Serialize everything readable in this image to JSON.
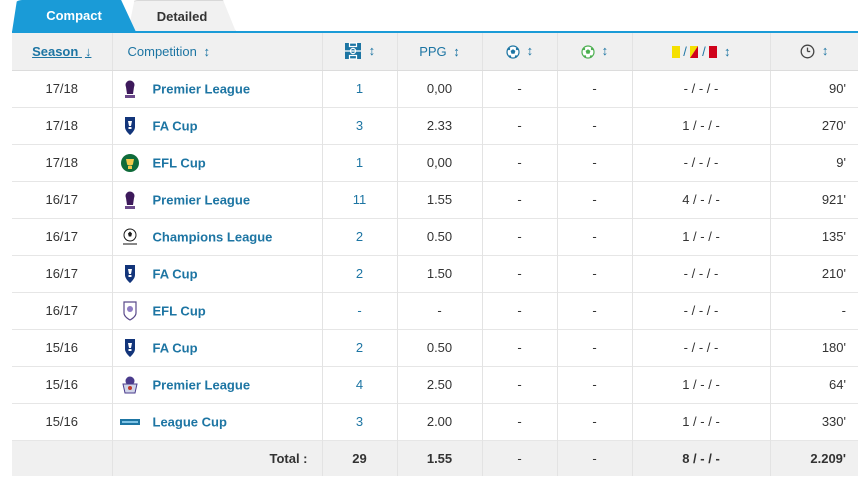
{
  "tabs": {
    "compact": "Compact",
    "detailed": "Detailed"
  },
  "headers": {
    "season": "Season",
    "season_arrow": "↓",
    "competition": "Competition",
    "competition_arrow": "↕",
    "apps_arrow": "↕",
    "ppg": "PPG",
    "ppg_arrow": "↕",
    "goals_arrow": "↕",
    "assists_arrow": "↕",
    "cards_sep1": "/",
    "cards_sep2": "/",
    "cards_arrow": "↕",
    "minutes_arrow": "↕"
  },
  "rows": [
    {
      "season": "17/18",
      "competition": "Premier League",
      "logo": "premier-league-logo",
      "apps": "1",
      "ppg": "0,00",
      "goals": "-",
      "assists": "-",
      "cards": "- / - / -",
      "minutes": "90'"
    },
    {
      "season": "17/18",
      "competition": "FA Cup",
      "logo": "fa-cup-logo",
      "apps": "3",
      "ppg": "2.33",
      "goals": "-",
      "assists": "-",
      "cards": "1 / - / -",
      "minutes": "270'"
    },
    {
      "season": "17/18",
      "competition": "EFL Cup",
      "logo": "efl-cup-logo",
      "apps": "1",
      "ppg": "0,00",
      "goals": "-",
      "assists": "-",
      "cards": "- / - / -",
      "minutes": "9'"
    },
    {
      "season": "16/17",
      "competition": "Premier League",
      "logo": "premier-league-logo",
      "apps": "11",
      "ppg": "1.55",
      "goals": "-",
      "assists": "-",
      "cards": "4 / - / -",
      "minutes": "921'"
    },
    {
      "season": "16/17",
      "competition": "Champions League",
      "logo": "champions-league-logo",
      "apps": "2",
      "ppg": "0.50",
      "goals": "-",
      "assists": "-",
      "cards": "1 / - / -",
      "minutes": "135'"
    },
    {
      "season": "16/17",
      "competition": "FA Cup",
      "logo": "fa-cup-logo",
      "apps": "2",
      "ppg": "1.50",
      "goals": "-",
      "assists": "-",
      "cards": "- / - / -",
      "minutes": "210'"
    },
    {
      "season": "16/17",
      "competition": "EFL Cup",
      "logo": "efl-cup-old-logo",
      "apps": "-",
      "ppg": "-",
      "goals": "-",
      "assists": "-",
      "cards": "- / - / -",
      "minutes": "-"
    },
    {
      "season": "15/16",
      "competition": "FA Cup",
      "logo": "fa-cup-logo",
      "apps": "2",
      "ppg": "0.50",
      "goals": "-",
      "assists": "-",
      "cards": "- / - / -",
      "minutes": "180'"
    },
    {
      "season": "15/16",
      "competition": "Premier League",
      "logo": "premier-league-old-logo",
      "apps": "4",
      "ppg": "2.50",
      "goals": "-",
      "assists": "-",
      "cards": "1 / - / -",
      "minutes": "64'"
    },
    {
      "season": "15/16",
      "competition": "League Cup",
      "logo": "league-cup-logo",
      "apps": "3",
      "ppg": "2.00",
      "goals": "-",
      "assists": "-",
      "cards": "1 / - / -",
      "minutes": "330'"
    }
  ],
  "total": {
    "label": "Total :",
    "apps": "29",
    "ppg": "1.55",
    "goals": "-",
    "assists": "-",
    "cards": "8 / - / -",
    "minutes": "2.209'"
  },
  "colors": {
    "accent": "#1a9bd7",
    "link": "#1d75a3",
    "yellow_card": "#f5e000",
    "red_card": "#d0021b"
  }
}
